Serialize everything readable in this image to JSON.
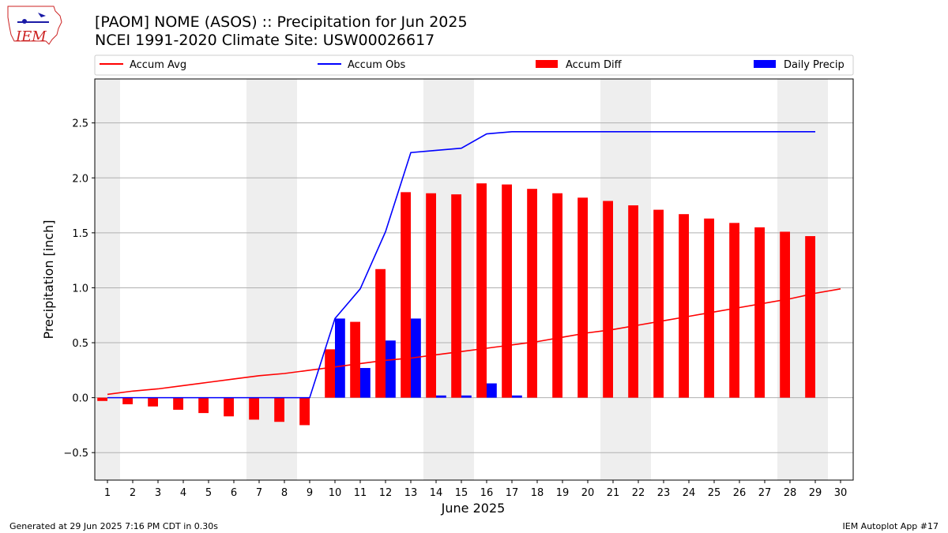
{
  "title": "[PAOM] NOME (ASOS) :: Precipitation for Jun 2025",
  "subtitle": "NCEI 1991-2020 Climate Site: USW00026617",
  "logo_text": "IEM",
  "footer_left": "Generated at 29 Jun 2025 7:16 PM CDT in 0.30s",
  "footer_right": "IEM Autoplot App #17",
  "colors": {
    "accum_avg": "#ff0000",
    "accum_obs": "#0000ff",
    "accum_diff": "#ff0000",
    "daily_precip": "#0000ff",
    "weekend_shade": "#eeeeee",
    "grid": "#b0b0b0"
  },
  "chart_data": {
    "type": "bar",
    "xlabel": "June 2025",
    "ylabel": "Precipitation [inch]",
    "xlim": [
      0.5,
      30.5
    ],
    "ylim": [
      -0.75,
      2.9
    ],
    "yticks": [
      -0.5,
      0.0,
      0.5,
      1.0,
      1.5,
      2.0,
      2.5
    ],
    "ytick_labels": [
      "−0.5",
      "0.0",
      "0.5",
      "1.0",
      "1.5",
      "2.0",
      "2.5"
    ],
    "grid": true,
    "legend_position": "top",
    "days": [
      1,
      2,
      3,
      4,
      5,
      6,
      7,
      8,
      9,
      10,
      11,
      12,
      13,
      14,
      15,
      16,
      17,
      18,
      19,
      20,
      21,
      22,
      23,
      24,
      25,
      26,
      27,
      28,
      29,
      30
    ],
    "weekend_ranges": [
      [
        0.5,
        1.5
      ],
      [
        6.5,
        8.5
      ],
      [
        13.5,
        15.5
      ],
      [
        20.5,
        22.5
      ],
      [
        27.5,
        29.5
      ]
    ],
    "series": [
      {
        "name": "Accum Avg",
        "kind": "line",
        "values": [
          0.03,
          0.06,
          0.08,
          0.11,
          0.14,
          0.17,
          0.2,
          0.22,
          0.25,
          0.28,
          0.31,
          0.34,
          0.36,
          0.39,
          0.42,
          0.45,
          0.48,
          0.51,
          0.55,
          0.59,
          0.62,
          0.66,
          0.7,
          0.74,
          0.78,
          0.82,
          0.86,
          0.9,
          0.95,
          0.99
        ]
      },
      {
        "name": "Accum Obs",
        "kind": "line",
        "values": [
          0.0,
          0.0,
          0.0,
          0.0,
          0.0,
          0.0,
          0.0,
          0.0,
          0.0,
          0.72,
          0.99,
          1.51,
          2.23,
          2.25,
          2.27,
          2.4,
          2.42,
          2.42,
          2.42,
          2.42,
          2.42,
          2.42,
          2.42,
          2.42,
          2.42,
          2.42,
          2.42,
          2.42,
          2.42
        ]
      },
      {
        "name": "Accum Diff",
        "kind": "bar",
        "values": [
          -0.03,
          -0.06,
          -0.08,
          -0.11,
          -0.14,
          -0.17,
          -0.2,
          -0.22,
          -0.25,
          0.44,
          0.69,
          1.17,
          1.87,
          1.86,
          1.85,
          1.95,
          1.94,
          1.9,
          1.86,
          1.82,
          1.79,
          1.75,
          1.71,
          1.67,
          1.63,
          1.59,
          1.55,
          1.51,
          1.47
        ]
      },
      {
        "name": "Daily Precip",
        "kind": "bar",
        "values": [
          0,
          0,
          0,
          0,
          0,
          0,
          0,
          0,
          0,
          0.72,
          0.27,
          0.52,
          0.72,
          0.02,
          0.02,
          0.13,
          0.02,
          0,
          0,
          0,
          0,
          0,
          0,
          0,
          0,
          0,
          0,
          0,
          0
        ]
      }
    ]
  }
}
